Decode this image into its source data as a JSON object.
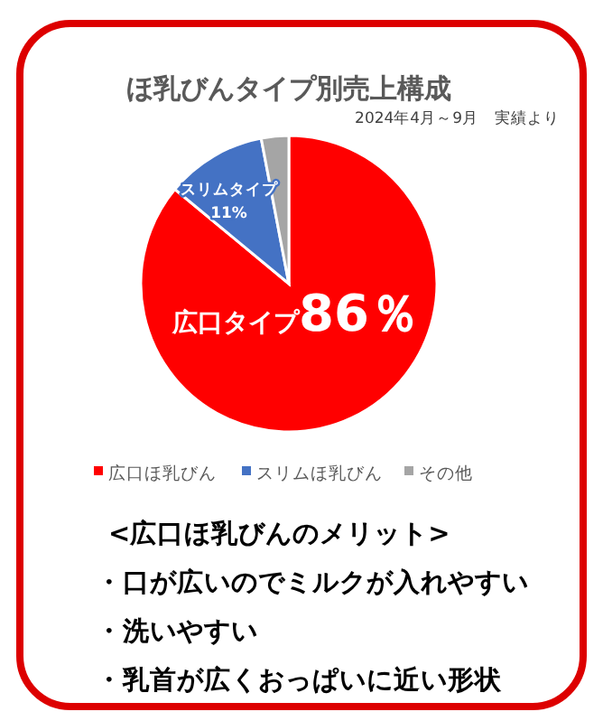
{
  "chart_data": {
    "type": "pie",
    "title": "ほ乳びんタイプ別売上構成",
    "subtitle": "2024年4月～9月　実績より",
    "categories": [
      "広口ほ乳びん",
      "スリムほ乳びん",
      "その他"
    ],
    "values": [
      86,
      11,
      3
    ],
    "colors": [
      "#ff0000",
      "#4472c4",
      "#a5a5a5"
    ],
    "value_labels": [
      "広口タイプ86％",
      "スリムタイプ 11%",
      null
    ],
    "legend": "bottom",
    "annotations": [
      "<広口ほ乳びんのメリット>",
      "・口が広いのでミルクが入れやすい",
      "・洗いやすい",
      "・乳首が広くおっぱいに近い形状"
    ]
  }
}
